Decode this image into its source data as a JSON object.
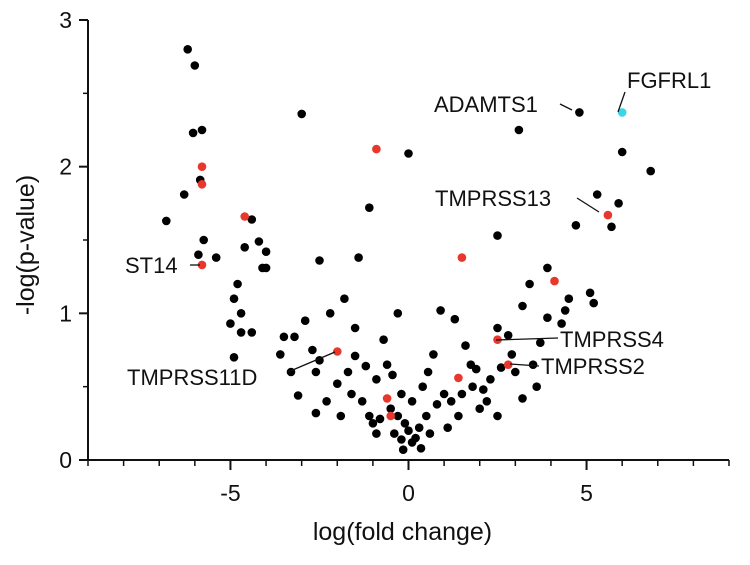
{
  "chart_data": {
    "type": "scatter",
    "title": "",
    "xlabel": "log(fold change)",
    "ylabel": "-log(p-value)",
    "xlim": [
      -9,
      9
    ],
    "ylim": [
      0,
      3
    ],
    "x_ticks": [
      -5,
      0,
      5
    ],
    "x_tick_labels": [
      "-5",
      "0",
      "5"
    ],
    "y_ticks": [
      0,
      1,
      2,
      3
    ],
    "y_tick_labels": [
      "0",
      "1",
      "2",
      "3"
    ],
    "grid": false,
    "colors": {
      "default": "#000000",
      "highlight": "#e8372c",
      "target": "#36d7e6"
    },
    "series": [
      {
        "color": "#000000",
        "points": [
          [
            -6.2,
            2.8
          ],
          [
            -6.0,
            2.69
          ],
          [
            -6.05,
            2.23
          ],
          [
            -5.8,
            2.25
          ],
          [
            -5.85,
            1.91
          ],
          [
            -6.3,
            1.81
          ],
          [
            -5.75,
            1.5
          ],
          [
            -5.9,
            1.4
          ],
          [
            -5.4,
            1.38
          ],
          [
            -6.8,
            1.63
          ],
          [
            -4.4,
            1.64
          ],
          [
            -4.6,
            1.45
          ],
          [
            -4.2,
            1.49
          ],
          [
            -4.0,
            1.42
          ],
          [
            -4.1,
            1.31
          ],
          [
            -4.0,
            1.31
          ],
          [
            -4.8,
            1.2
          ],
          [
            -4.9,
            1.1
          ],
          [
            -4.7,
            1.0
          ],
          [
            -5.0,
            0.93
          ],
          [
            -4.7,
            0.87
          ],
          [
            -4.4,
            0.87
          ],
          [
            -4.9,
            0.7
          ],
          [
            -3.0,
            2.36
          ],
          [
            -2.5,
            1.36
          ],
          [
            -1.4,
            1.38
          ],
          [
            -1.1,
            1.72
          ],
          [
            0.0,
            2.09
          ],
          [
            3.1,
            2.25
          ],
          [
            4.8,
            2.37
          ],
          [
            5.3,
            1.81
          ],
          [
            5.9,
            1.75
          ],
          [
            6.0,
            2.1
          ],
          [
            6.8,
            1.97
          ],
          [
            4.7,
            1.6
          ],
          [
            5.7,
            1.59
          ],
          [
            2.5,
            1.53
          ],
          [
            3.9,
            1.31
          ],
          [
            3.4,
            1.2
          ],
          [
            4.5,
            1.1
          ],
          [
            5.1,
            1.14
          ],
          [
            5.2,
            1.07
          ],
          [
            4.4,
            1.02
          ],
          [
            3.9,
            0.97
          ],
          [
            4.3,
            0.93
          ],
          [
            3.2,
            1.05
          ],
          [
            2.5,
            0.9
          ],
          [
            3.7,
            0.8
          ],
          [
            3.0,
            0.6
          ],
          [
            2.6,
            0.63
          ],
          [
            1.9,
            0.62
          ],
          [
            -2.2,
            1.0
          ],
          [
            -1.8,
            1.1
          ],
          [
            -1.5,
            0.9
          ],
          [
            -2.9,
            0.95
          ],
          [
            -3.2,
            0.84
          ],
          [
            -3.5,
            0.84
          ],
          [
            -3.6,
            0.72
          ],
          [
            -2.7,
            0.75
          ],
          [
            -2.5,
            0.68
          ],
          [
            -2.6,
            0.6
          ],
          [
            -1.5,
            0.71
          ],
          [
            -1.2,
            0.64
          ],
          [
            -2.0,
            0.52
          ],
          [
            -1.6,
            0.45
          ],
          [
            -0.9,
            0.55
          ],
          [
            -0.5,
            0.35
          ],
          [
            -0.3,
            0.3
          ],
          [
            -0.1,
            0.25
          ],
          [
            0.0,
            0.2
          ],
          [
            0.2,
            0.15
          ],
          [
            0.1,
            0.12
          ],
          [
            -0.2,
            0.14
          ],
          [
            0.3,
            0.22
          ],
          [
            0.5,
            0.3
          ],
          [
            0.8,
            0.38
          ],
          [
            1.0,
            0.45
          ],
          [
            1.2,
            0.4
          ],
          [
            1.5,
            0.45
          ],
          [
            1.8,
            0.5
          ],
          [
            2.1,
            0.48
          ],
          [
            2.3,
            0.55
          ],
          [
            0.4,
            0.5
          ],
          [
            -0.6,
            0.65
          ],
          [
            -1.0,
            0.25
          ],
          [
            -0.8,
            0.28
          ],
          [
            0.6,
            0.18
          ],
          [
            -0.4,
            0.18
          ],
          [
            1.4,
            0.3
          ],
          [
            2.0,
            0.35
          ],
          [
            2.2,
            0.4
          ],
          [
            -1.3,
            0.4
          ],
          [
            -1.1,
            0.3
          ],
          [
            0.1,
            0.4
          ],
          [
            -0.2,
            0.45
          ],
          [
            0.7,
            0.72
          ],
          [
            1.6,
            0.78
          ],
          [
            -0.7,
            0.82
          ],
          [
            -0.3,
            1.0
          ],
          [
            0.9,
            1.02
          ],
          [
            1.3,
            0.96
          ],
          [
            2.8,
            0.85
          ],
          [
            -3.1,
            0.44
          ],
          [
            -2.6,
            0.32
          ],
          [
            3.2,
            0.42
          ],
          [
            3.6,
            0.5
          ],
          [
            -1.9,
            0.3
          ],
          [
            1.1,
            0.22
          ],
          [
            -0.9,
            0.18
          ],
          [
            0.35,
            0.08
          ],
          [
            -0.15,
            0.07
          ],
          [
            2.5,
            0.3
          ],
          [
            -2.3,
            0.4
          ],
          [
            0.55,
            0.6
          ],
          [
            -0.45,
            0.58
          ],
          [
            1.75,
            0.65
          ],
          [
            -1.7,
            0.6
          ],
          [
            3.5,
            0.65
          ],
          [
            -3.3,
            0.6
          ],
          [
            2.9,
            0.72
          ]
        ]
      },
      {
        "color": "#e8372c",
        "points": [
          [
            -5.8,
            2.0
          ],
          [
            -5.8,
            1.88
          ],
          [
            -4.6,
            1.66
          ],
          [
            -5.8,
            1.33
          ],
          [
            -0.9,
            2.12
          ],
          [
            1.5,
            1.38
          ],
          [
            5.6,
            1.67
          ],
          [
            4.1,
            1.22
          ],
          [
            2.5,
            0.82
          ],
          [
            2.8,
            0.65
          ],
          [
            -2.0,
            0.74
          ],
          [
            1.4,
            0.56
          ],
          [
            -0.6,
            0.42
          ],
          [
            -0.5,
            0.3
          ]
        ]
      },
      {
        "color": "#36d7e6",
        "points": [
          [
            6.0,
            2.37
          ]
        ]
      }
    ],
    "annotations": [
      {
        "label": "FGFRL1",
        "x": 6.0,
        "y": 2.37
      },
      {
        "label": "ADAMTS1",
        "x": 4.8,
        "y": 2.37
      },
      {
        "label": "TMPRSS13",
        "x": 5.6,
        "y": 1.67
      },
      {
        "label": "ST14",
        "x": -5.8,
        "y": 1.33
      },
      {
        "label": "TMPRSS4",
        "x": 2.5,
        "y": 0.82
      },
      {
        "label": "TMPRSS2",
        "x": 2.8,
        "y": 0.65
      },
      {
        "label": "TMPRSS11D",
        "x": -2.0,
        "y": 0.74
      }
    ]
  }
}
